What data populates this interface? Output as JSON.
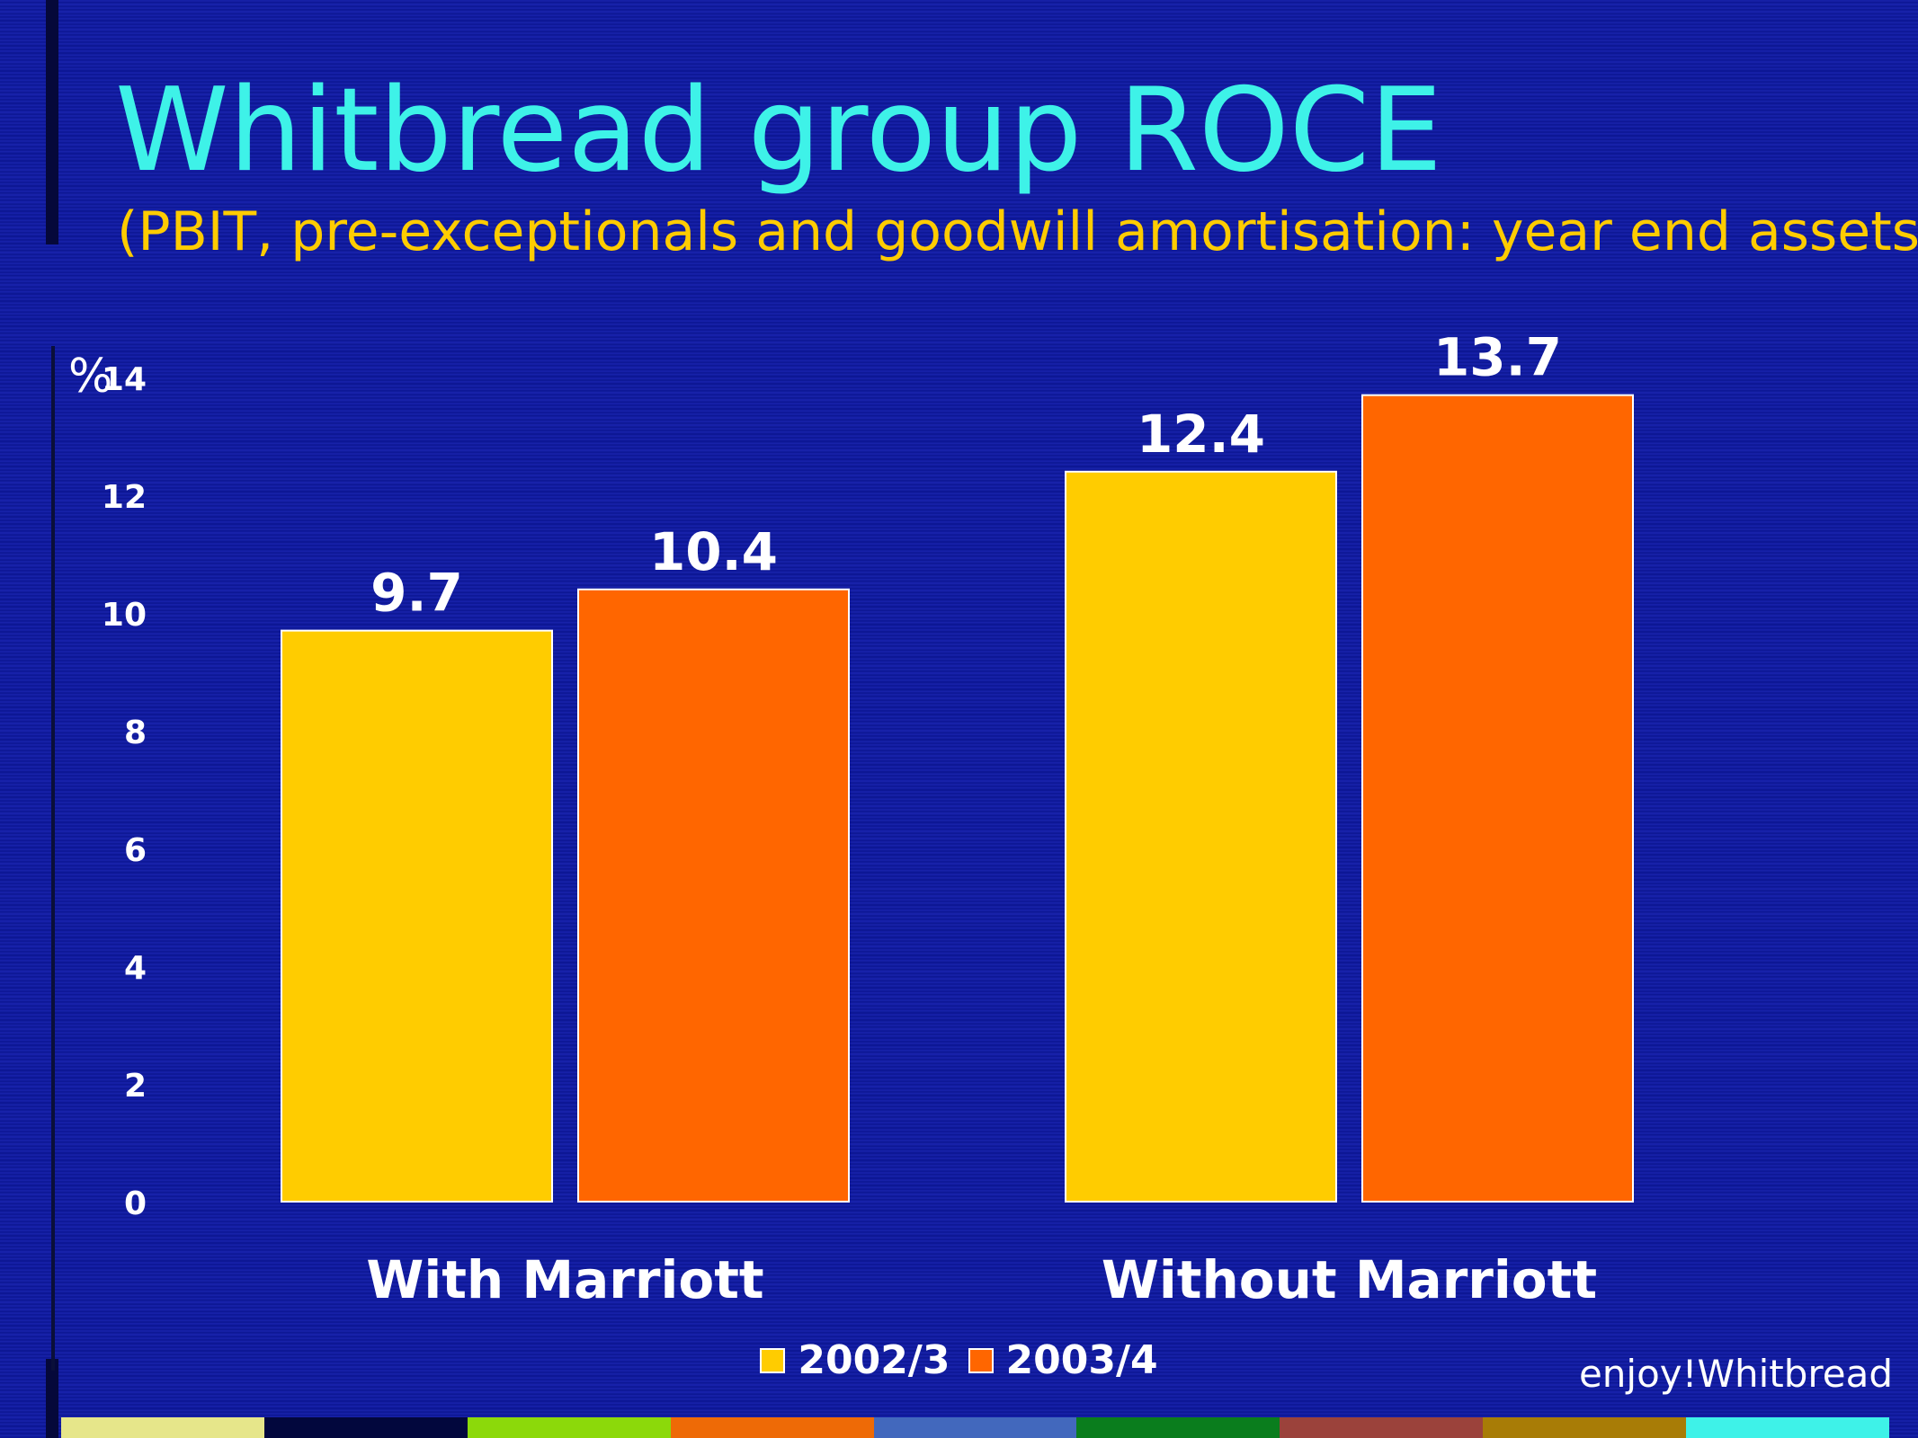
{
  "slide": {
    "title": "Whitbread group ROCE",
    "subtitle": "(PBIT, pre-exceptionals and goodwill amortisation: year end assets)",
    "footer": "enjoy!Whitbread",
    "background_color": "#0f1aa6",
    "bottom_stripe_colors": [
      "#e6e68a",
      "#02073d",
      "#8cd90a",
      "#ee6a06",
      "#4268bd",
      "#0a7d1d",
      "#9b423b",
      "#a87c06",
      "#3ef2e8"
    ]
  },
  "chart_data": {
    "type": "bar",
    "title": "",
    "xlabel": "",
    "ylabel": "%",
    "ylim": [
      0,
      14
    ],
    "yticks": [
      0,
      2,
      4,
      6,
      8,
      10,
      12,
      14
    ],
    "categories": [
      "With Marriott",
      "Without Marriott"
    ],
    "series": [
      {
        "name": "2002/3",
        "values": [
          9.7,
          12.4
        ],
        "color": "#ffcc00",
        "labels": [
          "9.7",
          "12.4"
        ]
      },
      {
        "name": "2003/4",
        "values": [
          10.4,
          13.7
        ],
        "color": "#ff6600",
        "labels": [
          "10.4",
          "13.7"
        ]
      }
    ],
    "legend": "bottom-center",
    "grid": false
  }
}
